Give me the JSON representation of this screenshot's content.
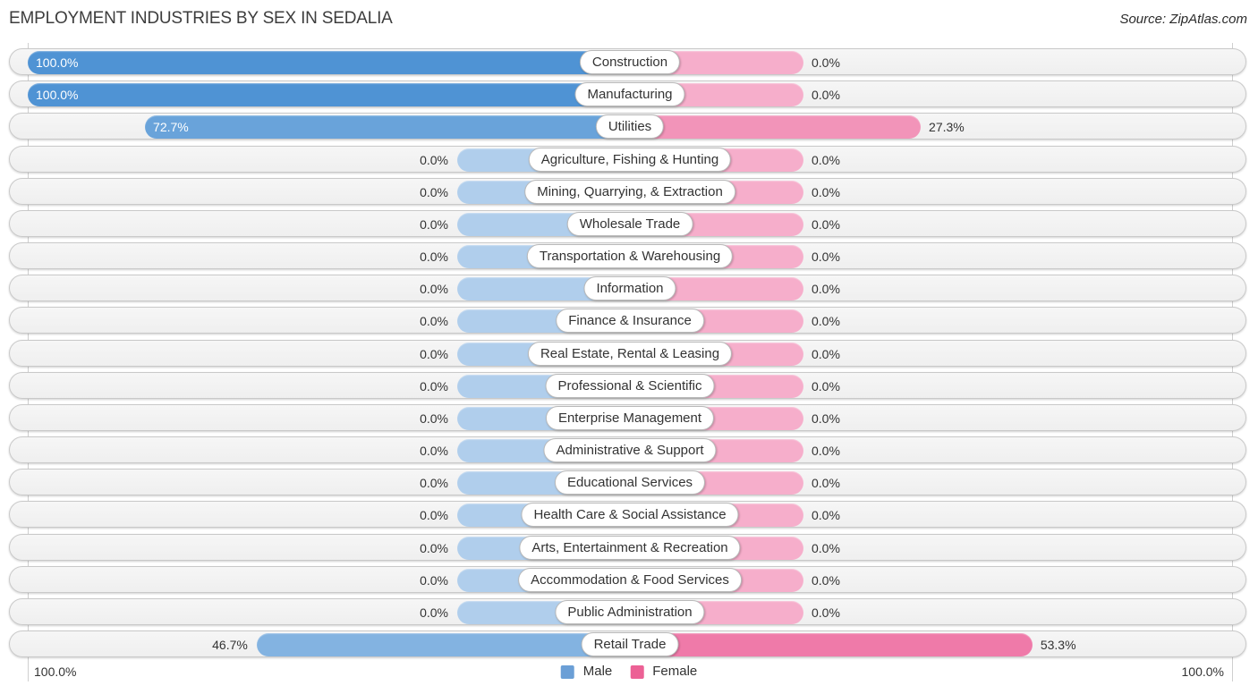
{
  "title": "EMPLOYMENT INDUSTRIES BY SEX IN SEDALIA",
  "source": "Source: ZipAtlas.com",
  "legend": {
    "male_label": "Male",
    "female_label": "Female"
  },
  "axis": {
    "left_label": "100.0%",
    "right_label": "100.0%"
  },
  "colors": {
    "male_base": "#4f93d4",
    "female_base": "#ea4c8b",
    "male_legend": "#6b9fd6",
    "female_legend": "#ec6195"
  },
  "chart_data": {
    "type": "bar",
    "orientation": "horizontal-diverging",
    "title": "EMPLOYMENT INDUSTRIES BY SEX IN SEDALIA",
    "value_suffix": "%",
    "decimals": 1,
    "xlim": [
      0,
      100
    ],
    "axis_end_labels": [
      "100.0%",
      "100.0%"
    ],
    "legend_position": "bottom-center",
    "categories": [
      "Construction",
      "Manufacturing",
      "Utilities",
      "Agriculture, Fishing & Hunting",
      "Mining, Quarrying, & Extraction",
      "Wholesale Trade",
      "Transportation & Warehousing",
      "Information",
      "Finance & Insurance",
      "Real Estate, Rental & Leasing",
      "Professional & Scientific",
      "Enterprise Management",
      "Administrative & Support",
      "Educational Services",
      "Health Care & Social Assistance",
      "Arts, Entertainment & Recreation",
      "Accommodation & Food Services",
      "Public Administration",
      "Retail Trade"
    ],
    "series": [
      {
        "name": "Male",
        "values": [
          100.0,
          100.0,
          72.7,
          0.0,
          0.0,
          0.0,
          0.0,
          0.0,
          0.0,
          0.0,
          0.0,
          0.0,
          0.0,
          0.0,
          0.0,
          0.0,
          0.0,
          0.0,
          46.7
        ]
      },
      {
        "name": "Female",
        "values": [
          0.0,
          0.0,
          27.3,
          0.0,
          0.0,
          0.0,
          0.0,
          0.0,
          0.0,
          0.0,
          0.0,
          0.0,
          0.0,
          0.0,
          0.0,
          0.0,
          0.0,
          0.0,
          53.3
        ]
      }
    ]
  }
}
